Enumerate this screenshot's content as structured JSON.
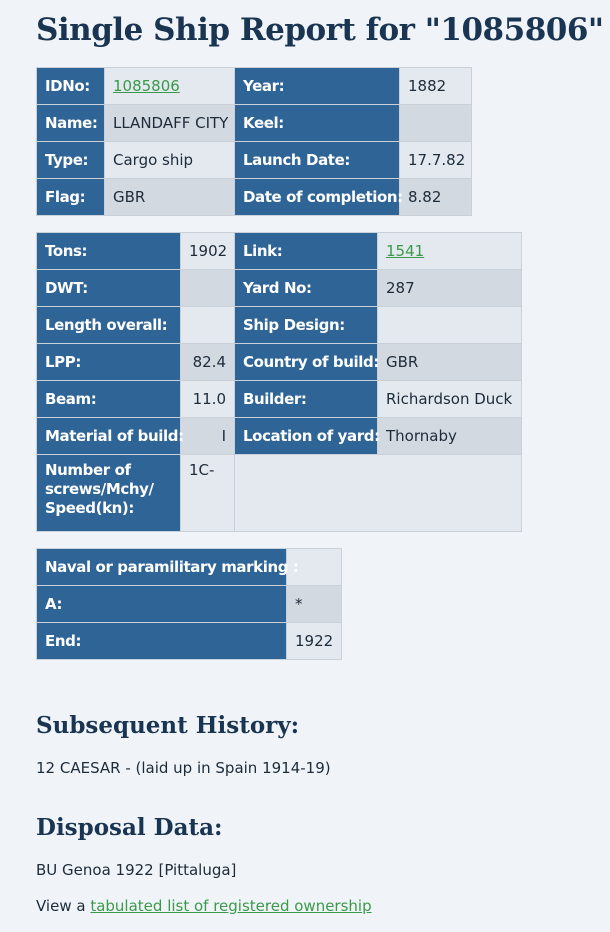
{
  "title": "Single Ship Report for \"1085806\"",
  "table1": [
    [
      "IDNo:",
      "1085806",
      "Year:",
      "1882"
    ],
    [
      "Name:",
      "LLANDAFF CITY",
      "Keel:",
      ""
    ],
    [
      "Type:",
      "Cargo ship",
      "Launch Date:",
      "17.7.82"
    ],
    [
      "Flag:",
      "GBR",
      "Date of completion:",
      "8.82"
    ]
  ],
  "table2": [
    [
      "Tons:",
      "1902",
      "Link:",
      "1541"
    ],
    [
      "DWT:",
      "",
      "Yard No:",
      "287"
    ],
    [
      "Length overall:",
      "",
      "Ship Design:",
      ""
    ],
    [
      "LPP:",
      "82.4",
      "Country of build:",
      "GBR"
    ],
    [
      "Beam:",
      "11.0",
      "Builder:",
      "Richardson Duck"
    ],
    [
      "Material of build:",
      "I",
      "Location of yard:",
      "Thornaby"
    ],
    [
      "Number of screws/Mchy/ Speed(kn):",
      "1C-",
      "",
      ""
    ]
  ],
  "table3": [
    [
      "Naval or paramilitary marking :",
      ""
    ],
    [
      "A:",
      "*"
    ],
    [
      "End:",
      "1922"
    ]
  ],
  "history": {
    "heading": "Subsequent History:",
    "text": "12 CAESAR - (laid up in Spain 1914-19)"
  },
  "disposal": {
    "heading": "Disposal Data:",
    "text": "BU Genoa 1922 [Pittaluga]"
  },
  "ownership": {
    "prefix": "View a ",
    "link": "tabulated list of registered ownership"
  },
  "colors": {
    "header": "#2f6496",
    "link": "#3a9a4a",
    "background": "#f0f4f8"
  }
}
